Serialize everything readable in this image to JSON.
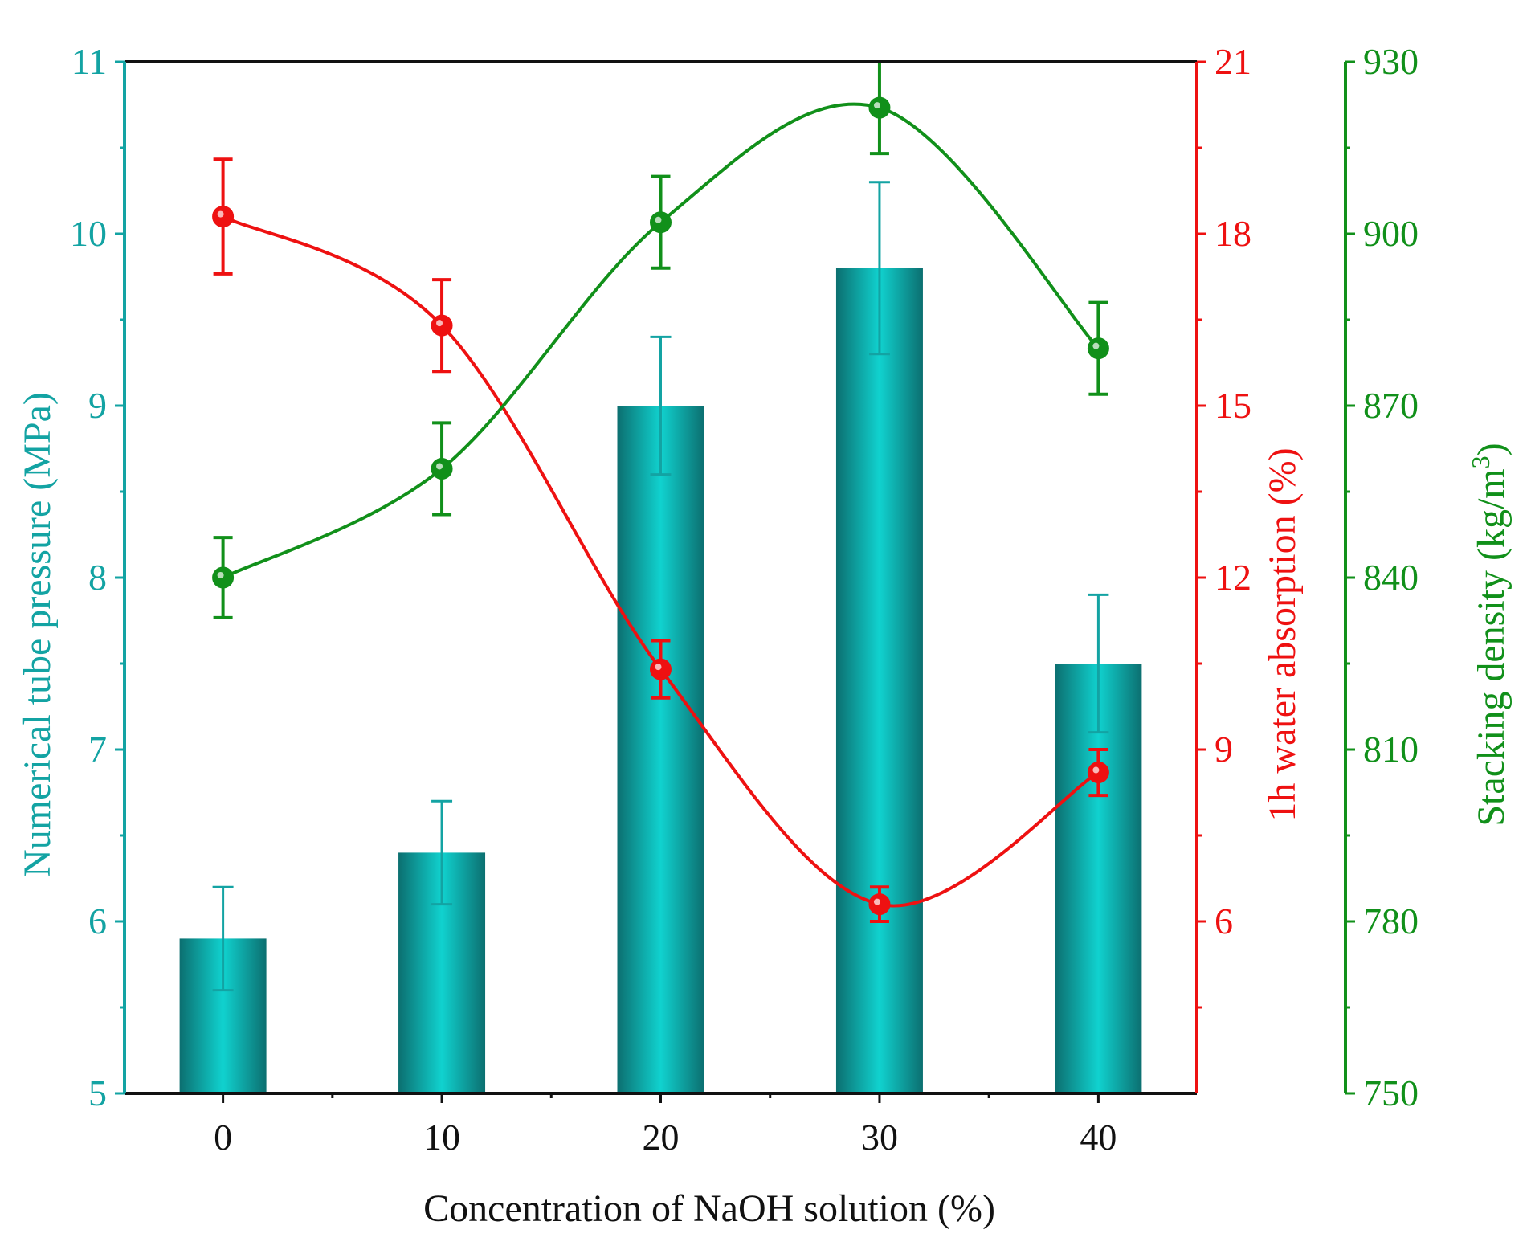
{
  "chart_data": {
    "type": "bar",
    "xlabel": "Concentration of NaOH solution (%)",
    "categories": [
      "0",
      "10",
      "20",
      "30",
      "40"
    ],
    "x": [
      0,
      10,
      20,
      30,
      40
    ],
    "xlim": [
      -4.5,
      44.5
    ],
    "bars": {
      "name": "Numerical tube pressure",
      "ylabel": "Numerical tube pressure (MPa)",
      "ylim": [
        5,
        11
      ],
      "ticks": [
        5,
        6,
        7,
        8,
        9,
        10,
        11
      ],
      "values": [
        5.9,
        6.4,
        9.0,
        9.8,
        7.5
      ],
      "errors": [
        0.3,
        0.3,
        0.4,
        0.5,
        0.4
      ],
      "color": "#13a3a3"
    },
    "series": [
      {
        "name": "1h water absorption",
        "ylabel": "1h water absorption (%)",
        "ylim": [
          3,
          21
        ],
        "ticks": [
          6,
          9,
          12,
          15,
          18,
          21
        ],
        "values": [
          18.3,
          16.4,
          10.4,
          6.3,
          8.6
        ],
        "errors": [
          1.0,
          0.8,
          0.5,
          0.3,
          0.4
        ],
        "color": "#ee1111"
      },
      {
        "name": "Stacking density",
        "ylabel": "Stacking density (kg/m",
        "ylabel_sup": "3",
        "ylabel_end": ")",
        "ylim": [
          750,
          930
        ],
        "ticks": [
          750,
          780,
          810,
          840,
          870,
          900,
          930
        ],
        "values": [
          840,
          859,
          902,
          922,
          880
        ],
        "errors": [
          7,
          8,
          8,
          8,
          8
        ],
        "color": "#11901a"
      }
    ]
  }
}
